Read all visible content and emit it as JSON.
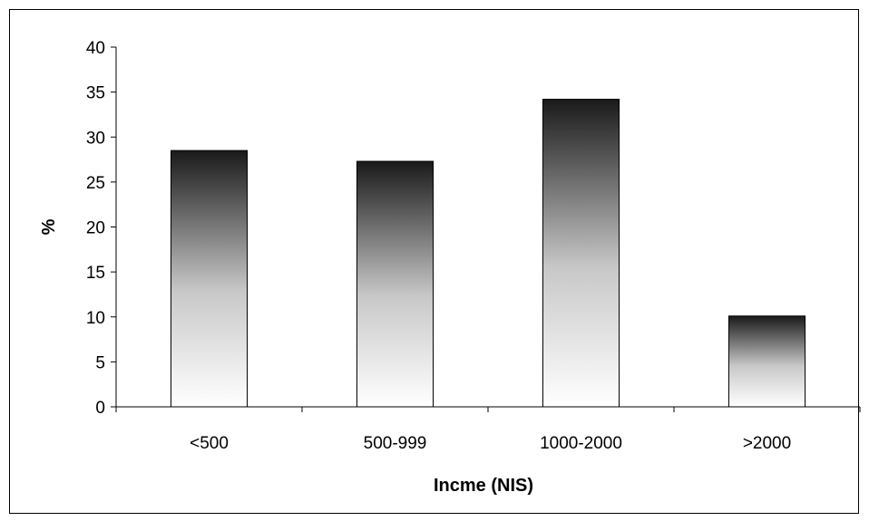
{
  "chart_data": {
    "type": "bar",
    "title": "",
    "xlabel": "Incme (NIS)",
    "ylabel": "%",
    "categories": [
      "<500",
      "500-999",
      "1000-2000",
      ">2000"
    ],
    "values": [
      28.5,
      27.3,
      34.2,
      10.1
    ],
    "ylim": [
      0,
      40
    ],
    "yticks": [
      0,
      5,
      10,
      15,
      20,
      25,
      30,
      35,
      40
    ],
    "grid": false,
    "legend": "none",
    "colors": {
      "bar_top": "#1a1a1a",
      "bar_bottom": "#ffffff",
      "axis": "#000000",
      "frame": "#000000"
    }
  }
}
